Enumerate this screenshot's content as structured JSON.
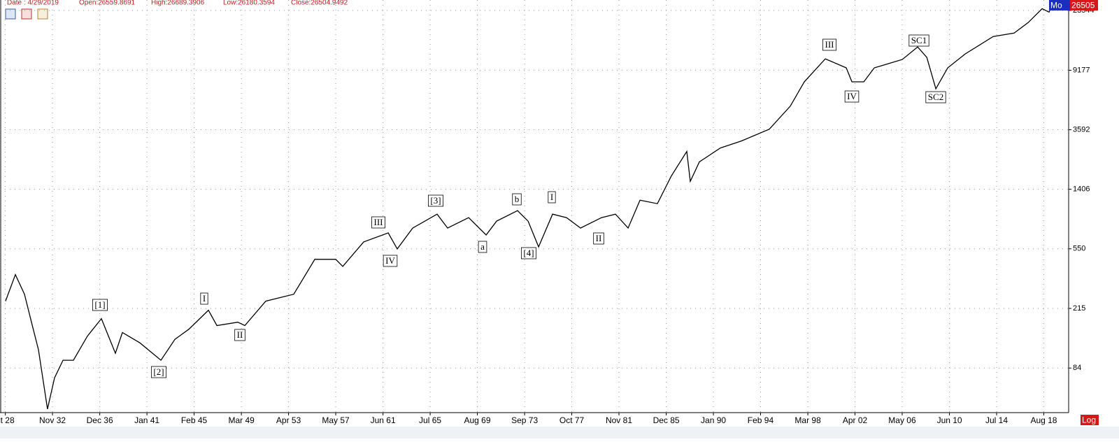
{
  "header": {
    "date": "Date : 4/29/2019",
    "open": "Open:26559.8691",
    "high": "High:26689.3906",
    "low": "Low:26180.3594",
    "close": "Close:26504.9492",
    "mode_badge": "Mo",
    "price_badge": "26505",
    "scale_badge": "Log"
  },
  "chart_data": {
    "type": "line",
    "log_scale": true,
    "grid": true,
    "xlim": [
      1928.29,
      2020.73
    ],
    "ylim": [
      41.6,
      27760
    ],
    "xticks": [
      {
        "value": 1928.75,
        "label": "ct 28"
      },
      {
        "value": 1932.83,
        "label": "Nov 32"
      },
      {
        "value": 1936.92,
        "label": "Dec 36"
      },
      {
        "value": 1941.0,
        "label": "Jan 41"
      },
      {
        "value": 1945.08,
        "label": "Feb 45"
      },
      {
        "value": 1949.17,
        "label": "Mar 49"
      },
      {
        "value": 1953.25,
        "label": "Apr 53"
      },
      {
        "value": 1957.33,
        "label": "May 57"
      },
      {
        "value": 1961.42,
        "label": "Jun 61"
      },
      {
        "value": 1965.5,
        "label": "Jul 65"
      },
      {
        "value": 1969.58,
        "label": "Aug 69"
      },
      {
        "value": 1973.67,
        "label": "Sep 73"
      },
      {
        "value": 1977.75,
        "label": "Oct 77"
      },
      {
        "value": 1981.83,
        "label": "Nov 81"
      },
      {
        "value": 1985.92,
        "label": "Dec 85"
      },
      {
        "value": 1990.0,
        "label": "Jan 90"
      },
      {
        "value": 1994.08,
        "label": "Feb 94"
      },
      {
        "value": 1998.17,
        "label": "Mar 98"
      },
      {
        "value": 2002.25,
        "label": "Apr 02"
      },
      {
        "value": 2006.33,
        "label": "May 06"
      },
      {
        "value": 2010.42,
        "label": "Jun 10"
      },
      {
        "value": 2014.5,
        "label": "Jul 14"
      },
      {
        "value": 2018.58,
        "label": "Aug 18"
      }
    ],
    "yticks": [
      84,
      215,
      550,
      1406,
      3592,
      9177,
      23544
    ],
    "series": [
      {
        "color": "#000000",
        "x": [
          1928.77,
          1929.62,
          1930.41,
          1931.01,
          1931.62,
          1932.4,
          1933.01,
          1933.74,
          1934.64,
          1935.85,
          1937.06,
          1938.27,
          1938.88,
          1940.39,
          1942.21,
          1943.42,
          1944.63,
          1946.32,
          1947.05,
          1948.86,
          1949.47,
          1951.28,
          1953.7,
          1955.52,
          1957.33,
          1957.94,
          1959.75,
          1961.87,
          1962.65,
          1963.99,
          1966.1,
          1967.01,
          1968.83,
          1970.34,
          1971.25,
          1973.06,
          1973.97,
          1974.88,
          1976.09,
          1977.3,
          1978.51,
          1980.32,
          1981.53,
          1982.62,
          1983.65,
          1985.16,
          1986.37,
          1987.7,
          1988.0,
          1988.79,
          1990.6,
          1992.42,
          1994.84,
          1996.65,
          1997.86,
          1999.68,
          2001.49,
          2001.98,
          2003.01,
          2003.92,
          2006.34,
          2007.67,
          2008.46,
          2009.24,
          2010.27,
          2011.78,
          2014.2,
          2016.02,
          2017.23,
          2018.44,
          2019.04,
          2019.33
        ],
        "values": [
          241,
          366,
          269,
          173,
          112,
          44,
          72,
          95,
          95,
          139,
          183,
          106,
          147,
          125,
          95,
          132,
          155,
          209,
          164,
          173,
          164,
          241,
          269,
          466,
          466,
          417,
          613,
          707,
          549,
          763,
          950,
          763,
          899,
          684,
          851,
          1004,
          851,
          567,
          950,
          899,
          763,
          899,
          950,
          763,
          1184,
          1120,
          1738,
          2552,
          1592,
          2164,
          2696,
          3008,
          3626,
          5208,
          7645,
          10985,
          9525,
          7645,
          7645,
          9525,
          10866,
          13243,
          11230,
          6852,
          9525,
          11867,
          15612,
          16490,
          19440,
          24220,
          22925,
          26505
        ]
      }
    ],
    "annotations": [
      "[1]",
      "[2]",
      "I",
      "II",
      "III",
      "IV",
      "[3]",
      "a",
      "b",
      "[4]",
      "I",
      "II",
      "III",
      "IV",
      "SC1",
      "SC2"
    ]
  }
}
